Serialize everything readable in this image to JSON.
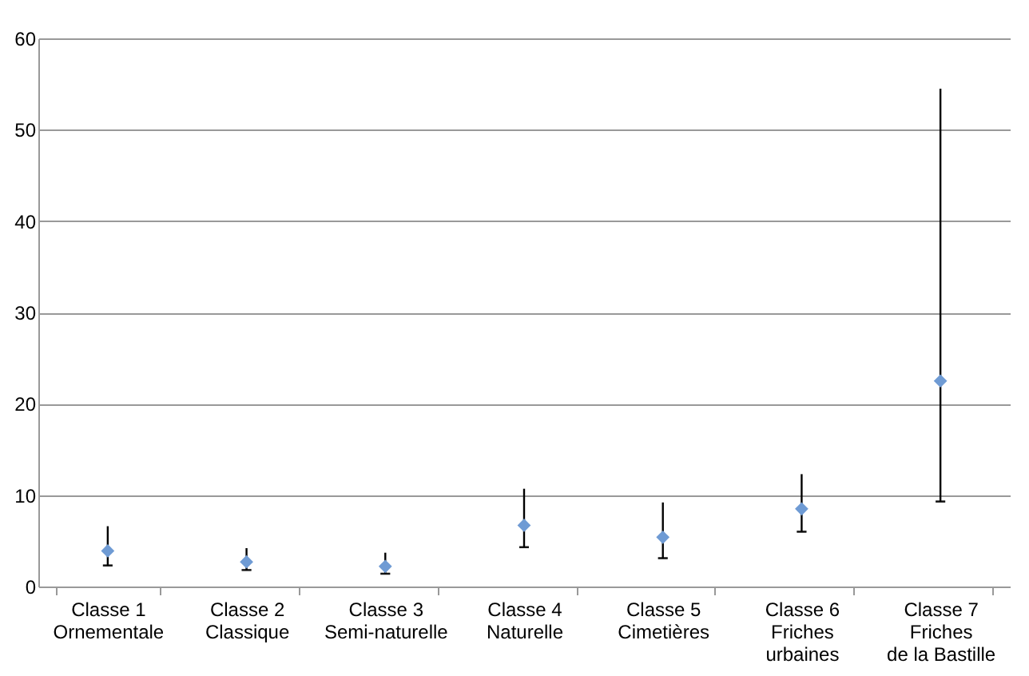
{
  "chart_data": {
    "type": "scatter",
    "categories": [
      "Classe 1\nOrnementale",
      "Classe 2\nClassique",
      "Classe 3\nSemi-naturelle",
      "Classe 4\nNaturelle",
      "Classe 5\nCimetières",
      "Classe 6\nFriches\nurbaines",
      "Classe 7\nFriches\nde la Bastille"
    ],
    "series": [
      {
        "color": "#6f9bd4",
        "values": [
          3.9,
          2.7,
          2.2,
          6.7,
          5.4,
          8.5,
          22.5
        ],
        "errors": [
          [
            2.3,
            6.6
          ],
          [
            1.8,
            4.2
          ],
          [
            1.4,
            3.7
          ],
          [
            4.3,
            10.7
          ],
          [
            3.1,
            9.2
          ],
          [
            6.0,
            12.3
          ],
          [
            9.3,
            54.5
          ]
        ]
      }
    ],
    "ylim": [
      0,
      60
    ],
    "yticks": [
      0,
      10,
      20,
      30,
      40,
      50,
      60
    ],
    "grid": "y",
    "legend": false,
    "marker": "diamond"
  }
}
